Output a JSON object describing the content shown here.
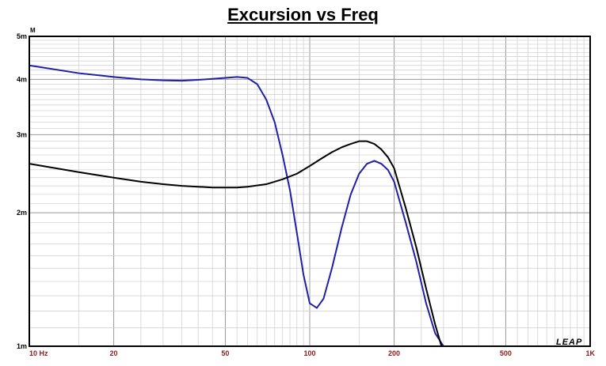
{
  "chart_data": {
    "type": "line",
    "title": "Excursion vs Freq",
    "y_unit_label": "M",
    "watermark": "LEAP",
    "x_scale": "log",
    "y_scale": "log",
    "xlim": [
      10,
      1000
    ],
    "ylim": [
      0.001,
      0.005
    ],
    "grid": true,
    "x_ticks": [
      {
        "value": 10,
        "label": "10  Hz"
      },
      {
        "value": 20,
        "label": "20"
      },
      {
        "value": 50,
        "label": "50"
      },
      {
        "value": 100,
        "label": "100"
      },
      {
        "value": 200,
        "label": "200"
      },
      {
        "value": 500,
        "label": "500"
      },
      {
        "value": 1000,
        "label": "1K"
      }
    ],
    "y_ticks": [
      {
        "value": 0.001,
        "label": "1m"
      },
      {
        "value": 0.002,
        "label": "2m"
      },
      {
        "value": 0.003,
        "label": "3m"
      },
      {
        "value": 0.004,
        "label": "4m"
      },
      {
        "value": 0.005,
        "label": "5m"
      }
    ],
    "series": [
      {
        "color": "#1f1fa8",
        "points": [
          [
            10,
            0.0043
          ],
          [
            15,
            0.00413
          ],
          [
            20,
            0.00405
          ],
          [
            25,
            0.004
          ],
          [
            30,
            0.00398
          ],
          [
            35,
            0.00397
          ],
          [
            40,
            0.00399
          ],
          [
            45,
            0.00401
          ],
          [
            50,
            0.00403
          ],
          [
            55,
            0.00405
          ],
          [
            60,
            0.00403
          ],
          [
            65,
            0.0039
          ],
          [
            70,
            0.0036
          ],
          [
            75,
            0.0032
          ],
          [
            80,
            0.0027
          ],
          [
            85,
            0.00225
          ],
          [
            90,
            0.0018
          ],
          [
            95,
            0.00145
          ],
          [
            100,
            0.00125
          ],
          [
            106,
            0.00122
          ],
          [
            112,
            0.00128
          ],
          [
            120,
            0.0015
          ],
          [
            130,
            0.00185
          ],
          [
            140,
            0.0022
          ],
          [
            150,
            0.00245
          ],
          [
            160,
            0.00258
          ],
          [
            170,
            0.00262
          ],
          [
            180,
            0.00258
          ],
          [
            190,
            0.0025
          ],
          [
            200,
            0.00235
          ],
          [
            220,
            0.0019
          ],
          [
            240,
            0.00155
          ],
          [
            260,
            0.00125
          ],
          [
            280,
            0.00107
          ],
          [
            300,
            0.001
          ],
          [
            400,
            0.001
          ],
          [
            600,
            0.001
          ],
          [
            1000,
            0.001
          ]
        ]
      },
      {
        "color": "#000000",
        "points": [
          [
            10,
            0.00258
          ],
          [
            15,
            0.00247
          ],
          [
            20,
            0.0024
          ],
          [
            25,
            0.00235
          ],
          [
            30,
            0.00232
          ],
          [
            35,
            0.0023
          ],
          [
            40,
            0.00229
          ],
          [
            45,
            0.00228
          ],
          [
            50,
            0.00228
          ],
          [
            55,
            0.00228
          ],
          [
            60,
            0.00229
          ],
          [
            70,
            0.00232
          ],
          [
            80,
            0.00238
          ],
          [
            90,
            0.00245
          ],
          [
            100,
            0.00255
          ],
          [
            110,
            0.00265
          ],
          [
            120,
            0.00274
          ],
          [
            130,
            0.00281
          ],
          [
            140,
            0.00286
          ],
          [
            150,
            0.0029
          ],
          [
            160,
            0.0029
          ],
          [
            170,
            0.00286
          ],
          [
            180,
            0.00278
          ],
          [
            190,
            0.00267
          ],
          [
            200,
            0.00252
          ],
          [
            220,
            0.00205
          ],
          [
            240,
            0.00167
          ],
          [
            260,
            0.00135
          ],
          [
            280,
            0.00112
          ],
          [
            295,
            0.001
          ],
          [
            400,
            0.001
          ],
          [
            600,
            0.001
          ],
          [
            1000,
            0.001
          ]
        ]
      }
    ]
  }
}
